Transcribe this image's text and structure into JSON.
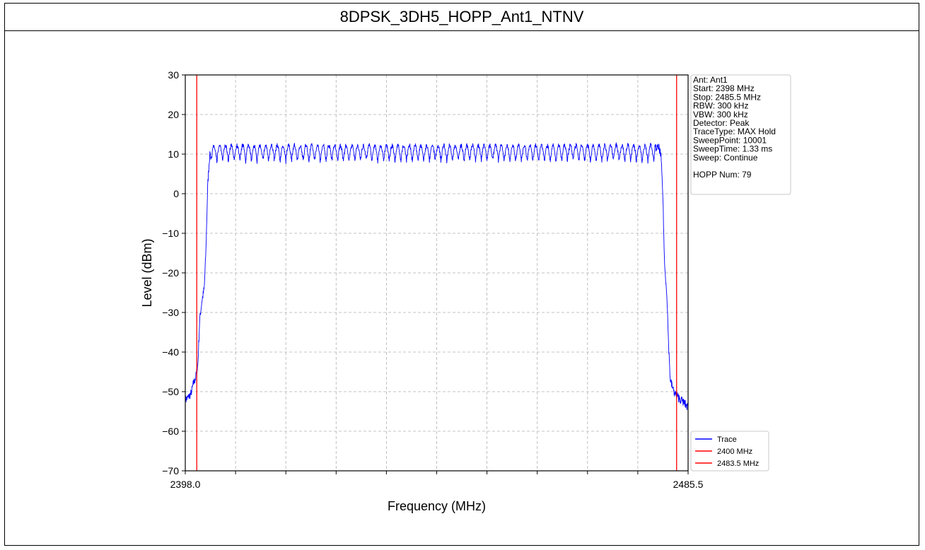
{
  "page_title": "8DPSK_3DH5_HOPP_Ant1_NTNV",
  "colors": {
    "trace": "#0000ff",
    "limit": "#ff0000",
    "grid": "#b0b0b0",
    "axis": "#000000"
  },
  "chart_data": {
    "type": "line",
    "title": "8DPSK_3DH5_HOPP_Ant1_NTNV",
    "xlabel": "Frequency (MHz)",
    "ylabel": "Level (dBm)",
    "xlim": [
      2398.0,
      2485.5
    ],
    "ylim": [
      -70,
      30
    ],
    "x_tick_labels": [
      "2398.0",
      "2485.5"
    ],
    "y_ticks": [
      30,
      20,
      10,
      0,
      -10,
      -20,
      -30,
      -40,
      -50,
      -60,
      -70
    ],
    "grid": true,
    "series": [
      {
        "name": "Trace",
        "color": "#0000ff",
        "hop_channels": 79,
        "first_channel_mhz": 2402.0,
        "channel_spacing_mhz": 1.0,
        "peak_level_dbm": 12.8,
        "valley_level_dbm": 7.5,
        "envelope": [
          [
            2398.0,
            -52.0
          ],
          [
            2398.5,
            -51.5
          ],
          [
            2399.0,
            -50.5
          ],
          [
            2399.4,
            -48.0
          ],
          [
            2399.8,
            -46.5
          ],
          [
            2400.2,
            -43.0
          ],
          [
            2400.5,
            -32.0
          ],
          [
            2400.9,
            -27.0
          ],
          [
            2401.3,
            -24.0
          ],
          [
            2401.6,
            -14.0
          ],
          [
            2401.9,
            2.0
          ],
          [
            2402.2,
            9.0
          ],
          [
            2402.6,
            11.5
          ],
          [
            2480.5,
            11.5
          ],
          [
            2480.8,
            9.0
          ],
          [
            2481.1,
            0.0
          ],
          [
            2481.4,
            -18.0
          ],
          [
            2481.8,
            -25.0
          ],
          [
            2482.1,
            -38.0
          ],
          [
            2482.4,
            -47.0
          ],
          [
            2483.0,
            -50.0
          ],
          [
            2483.8,
            -51.5
          ],
          [
            2484.6,
            -52.5
          ],
          [
            2485.5,
            -54.0
          ]
        ]
      },
      {
        "name": "2400 MHz",
        "color": "#ff0000",
        "vline_x": 2400.0
      },
      {
        "name": "2483.5 MHz",
        "color": "#ff0000",
        "vline_x": 2483.5
      }
    ],
    "info_box": {
      "placement": "top-right outside plot",
      "lines": [
        "Ant: Ant1",
        "Start: 2398 MHz",
        "Stop: 2485.5 MHz",
        "RBW: 300 kHz",
        "VBW: 300 kHz",
        "Detector: Peak",
        "TraceType: MAX Hold",
        "SweepPoint: 10001",
        "SweepTime: 1.33 ms",
        "Sweep: Continue",
        "",
        "HOPP Num: 79"
      ]
    },
    "legend": {
      "placement": "bottom-right outside plot",
      "entries": [
        "Trace",
        "2400 MHz",
        "2483.5 MHz"
      ]
    }
  }
}
